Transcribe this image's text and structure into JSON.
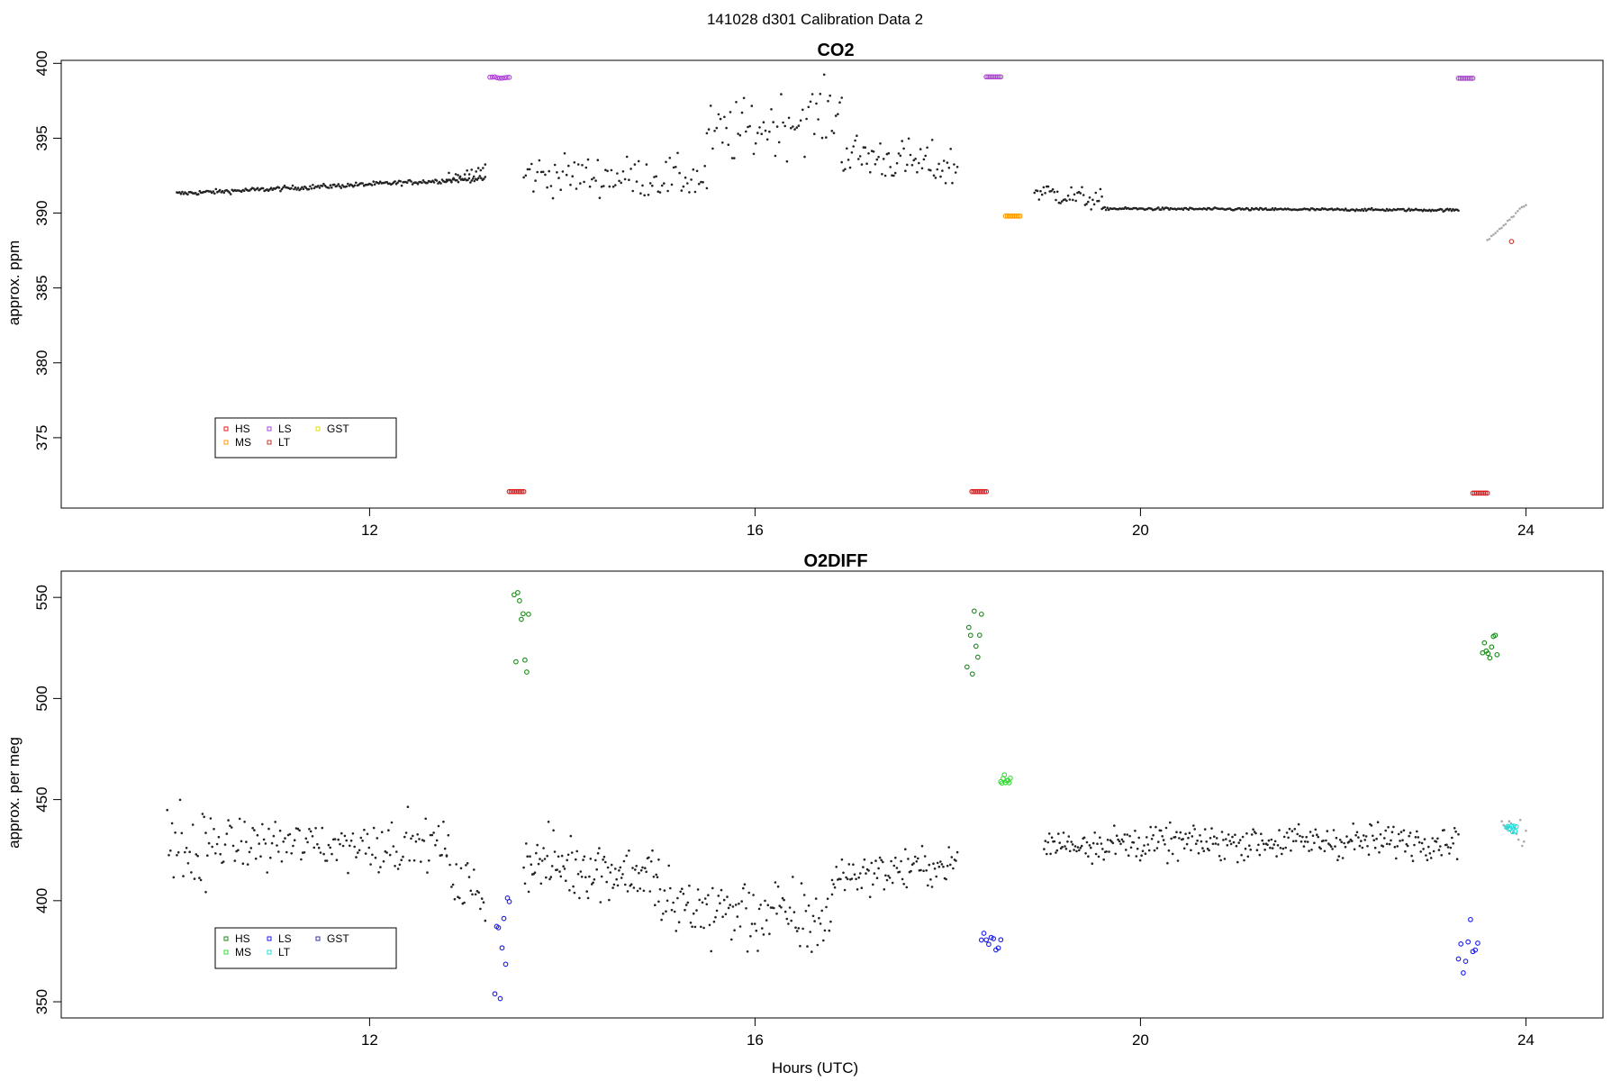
{
  "figure": {
    "title": "141028   d301   Calibration Data 2"
  },
  "chart_data": [
    {
      "type": "scatter",
      "title": "CO2",
      "xlabel": "",
      "ylabel": "approx. ppm",
      "xlim": [
        8.8,
        24.8
      ],
      "ylim": [
        370.3,
        400.2
      ],
      "xticks": [
        12,
        16,
        20,
        24
      ],
      "yticks": [
        375,
        380,
        385,
        390,
        395,
        400
      ],
      "grid": false,
      "legend": {
        "placement": "bottom-left",
        "entries": [
          {
            "label": "HS",
            "color": "#e41a1c"
          },
          {
            "label": "MS",
            "color": "#ff9900"
          },
          {
            "label": "LS",
            "color": "#b041d8"
          },
          {
            "label": "LT",
            "color": "#c0392b"
          },
          {
            "label": "GST",
            "color": "#e8d800"
          }
        ]
      },
      "ambient_segments": [
        {
          "x": [
            10.0,
            13.2
          ],
          "y": [
            391.3,
            392.3
          ],
          "noise": 0.15,
          "n": 230,
          "color": "#222222"
        },
        {
          "x": [
            12.8,
            13.2
          ],
          "y": [
            392.2,
            393.0
          ],
          "noise": 0.5,
          "n": 18,
          "color": "#222222"
        },
        {
          "x": [
            13.6,
            15.5
          ],
          "y": [
            392.6,
            392.3
          ],
          "noise": 1.3,
          "n": 95,
          "color": "#222222"
        },
        {
          "x": [
            15.5,
            16.9
          ],
          "y": [
            395.0,
            396.8
          ],
          "noise": 2.0,
          "n": 70,
          "color": "#222222"
        },
        {
          "x": [
            16.9,
            18.1
          ],
          "y": [
            394.0,
            393.0
          ],
          "noise": 1.4,
          "n": 70,
          "color": "#222222"
        },
        {
          "x": [
            18.9,
            19.6
          ],
          "y": [
            391.5,
            390.8
          ],
          "noise": 0.7,
          "n": 45,
          "color": "#222222"
        },
        {
          "x": [
            19.6,
            23.3
          ],
          "y": [
            390.3,
            390.2
          ],
          "noise": 0.08,
          "n": 260,
          "color": "#222222"
        },
        {
          "x": [
            23.6,
            24.0
          ],
          "y": [
            388.2,
            390.6
          ],
          "noise": 0.1,
          "n": 20,
          "color": "#aaaaaa"
        }
      ],
      "cal_points": [
        {
          "label": "LS",
          "color": "#b041d8",
          "x": [
            13.25,
            13.45
          ],
          "y": [
            399.0,
            399.1
          ]
        },
        {
          "label": "HS",
          "color": "#e41a1c",
          "x": [
            13.45,
            13.6
          ],
          "y": [
            371.4,
            371.4
          ]
        },
        {
          "label": "LS",
          "color": "#b041d8",
          "x": [
            18.4,
            18.55
          ],
          "y": [
            399.1,
            399.1
          ]
        },
        {
          "label": "HS",
          "color": "#e41a1c",
          "x": [
            18.25,
            18.4
          ],
          "y": [
            371.4,
            371.4
          ]
        },
        {
          "label": "MS",
          "color": "#ff9900",
          "x": [
            18.6,
            18.75
          ],
          "y": [
            389.8,
            389.8
          ]
        },
        {
          "label": "LS",
          "color": "#b041d8",
          "x": [
            23.3,
            23.45
          ],
          "y": [
            399.0,
            399.0
          ]
        },
        {
          "label": "HS",
          "color": "#e41a1c",
          "x": [
            23.45,
            23.6
          ],
          "y": [
            371.3,
            371.3
          ]
        },
        {
          "label": "LT",
          "color": "#c0392b",
          "x": [
            23.85,
            23.85
          ],
          "y": [
            388.1,
            388.1
          ]
        }
      ]
    },
    {
      "type": "scatter",
      "title": "O2DIFF",
      "xlabel": "Hours (UTC)",
      "ylabel": "approx. per meg",
      "xlim": [
        8.8,
        24.8
      ],
      "ylim": [
        342,
        563
      ],
      "xticks": [
        12,
        16,
        20,
        24
      ],
      "yticks": [
        350,
        400,
        450,
        500,
        550
      ],
      "grid": false,
      "legend": {
        "placement": "bottom-left",
        "entries": [
          {
            "label": "HS",
            "color": "#1a8a1a"
          },
          {
            "label": "MS",
            "color": "#33dd33"
          },
          {
            "label": "LS",
            "color": "#1a1aee"
          },
          {
            "label": "LT",
            "color": "#22dddd"
          },
          {
            "label": "GST",
            "color": "#3333aa"
          }
        ]
      },
      "ambient_segments": [
        {
          "x": [
            9.9,
            10.3
          ],
          "y": [
            430,
            420
          ],
          "noise": 22,
          "n": 25,
          "color": "#222222"
        },
        {
          "x": [
            10.3,
            12.8
          ],
          "y": [
            428,
            428
          ],
          "noise": 12,
          "n": 150,
          "color": "#222222"
        },
        {
          "x": [
            12.8,
            13.2
          ],
          "y": [
            415,
            400
          ],
          "noise": 14,
          "n": 25,
          "color": "#222222"
        },
        {
          "x": [
            13.6,
            15.0
          ],
          "y": [
            420,
            412
          ],
          "noise": 14,
          "n": 110,
          "color": "#222222"
        },
        {
          "x": [
            15.0,
            16.8
          ],
          "y": [
            398,
            390
          ],
          "noise": 18,
          "n": 120,
          "color": "#222222"
        },
        {
          "x": [
            16.8,
            18.1
          ],
          "y": [
            412,
            418
          ],
          "noise": 9,
          "n": 90,
          "color": "#222222"
        },
        {
          "x": [
            19.0,
            23.3
          ],
          "y": [
            428,
            430
          ],
          "noise": 8,
          "n": 320,
          "color": "#222222"
        },
        {
          "x": [
            23.75,
            24.0
          ],
          "y": [
            440,
            430
          ],
          "noise": 5,
          "n": 14,
          "color": "#aaaaaa"
        }
      ],
      "cal_points": [
        {
          "label": "HS",
          "color": "#1a8a1a",
          "x": [
            13.5,
            13.65
          ],
          "y": [
            511,
            555
          ]
        },
        {
          "label": "LS",
          "color": "#1a1aee",
          "x": [
            13.3,
            13.45
          ],
          "y": [
            350,
            405
          ]
        },
        {
          "label": "HS",
          "color": "#1a8a1a",
          "x": [
            18.2,
            18.35
          ],
          "y": [
            512,
            550
          ]
        },
        {
          "label": "LS",
          "color": "#1a1aee",
          "x": [
            18.35,
            18.55
          ],
          "y": [
            373,
            384
          ]
        },
        {
          "label": "MS",
          "color": "#33dd33",
          "x": [
            18.55,
            18.65
          ],
          "y": [
            458,
            463
          ]
        },
        {
          "label": "HS",
          "color": "#1a8a1a",
          "x": [
            23.55,
            23.7
          ],
          "y": [
            519,
            536
          ]
        },
        {
          "label": "LS",
          "color": "#1a1aee",
          "x": [
            23.3,
            23.5
          ],
          "y": [
            363,
            393
          ]
        },
        {
          "label": "LT",
          "color": "#22dddd",
          "x": [
            23.8,
            23.9
          ],
          "y": [
            434,
            437
          ]
        }
      ]
    }
  ]
}
